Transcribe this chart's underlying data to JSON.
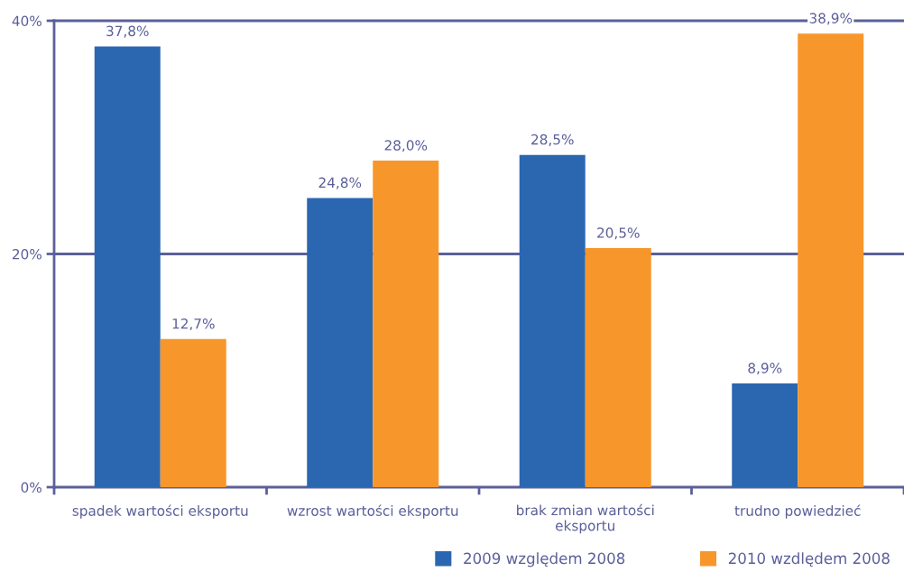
{
  "chart_data": {
    "type": "bar",
    "categories": [
      "spadek wartości eksportu",
      "wzrost wartości eksportu",
      "brak zmian wartości\neksportu",
      "trudno powiedzieć"
    ],
    "series": [
      {
        "name": "2009 względem 2008",
        "color": "#2b67b1",
        "values": [
          37.8,
          24.8,
          28.5,
          8.9
        ],
        "value_labels": [
          "37,8%",
          "24,8%",
          "28,5%",
          "8,9%"
        ]
      },
      {
        "name": "2010 wzdlędem 2008",
        "color": "#f7962b",
        "values": [
          12.7,
          28.0,
          20.5,
          38.9
        ],
        "value_labels": [
          "12,7%",
          "28,0%",
          "20,5%",
          "38,9%"
        ]
      }
    ],
    "ylim": [
      0,
      40
    ],
    "yticks": [
      {
        "value": 0,
        "label": "0%"
      },
      {
        "value": 20,
        "label": "20%"
      },
      {
        "value": 40,
        "label": "40%"
      }
    ],
    "ref_lines": [
      {
        "axis": "y",
        "value": 20,
        "color": "#5b5f99"
      },
      {
        "axis": "y",
        "value": 40,
        "color": "#5b5f99"
      }
    ],
    "legend": "bottom right"
  }
}
